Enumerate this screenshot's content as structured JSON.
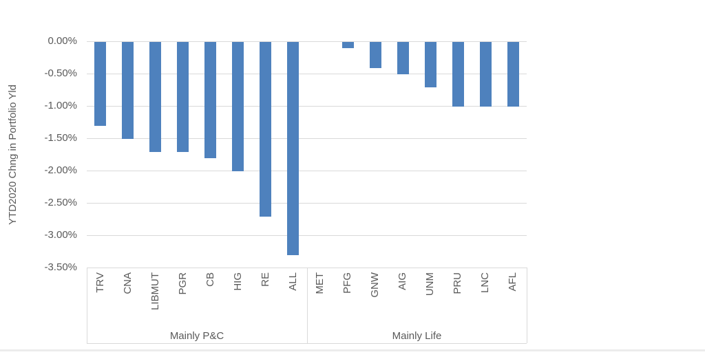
{
  "chart_data": {
    "type": "bar",
    "title": "",
    "xlabel": "",
    "ylabel": "YTD2020 Chng in Portfolio Yld",
    "categories": [
      "TRV",
      "CNA",
      "LIBMUT",
      "PGR",
      "CB",
      "HIG",
      "RE",
      "ALL",
      "MET",
      "PFG",
      "GNW",
      "AIG",
      "UNM",
      "PRU",
      "LNC",
      "AFL"
    ],
    "values": [
      -1.3,
      -1.5,
      -1.7,
      -1.7,
      -1.8,
      -2.0,
      -2.7,
      -3.3,
      0.0,
      -0.1,
      -0.4,
      -0.5,
      -0.7,
      -1.0,
      -1.0,
      -1.0
    ],
    "value_unit": "percent",
    "ylim": [
      -3.5,
      0
    ],
    "ytick_step": 0.5,
    "ytick_labels": [
      "0.00%",
      "-0.50%",
      "-1.00%",
      "-1.50%",
      "-2.00%",
      "-2.50%",
      "-3.00%",
      "-3.50%"
    ],
    "groups": [
      {
        "label": "Mainly P&C",
        "span": 8
      },
      {
        "label": "Mainly Life",
        "span": 8
      }
    ],
    "legend_position": "none",
    "grid": true,
    "colors": {
      "bar": "#4e81bd",
      "gridline": "#d9d9d9",
      "axis_text": "#595959",
      "background": "#ffffff"
    }
  }
}
